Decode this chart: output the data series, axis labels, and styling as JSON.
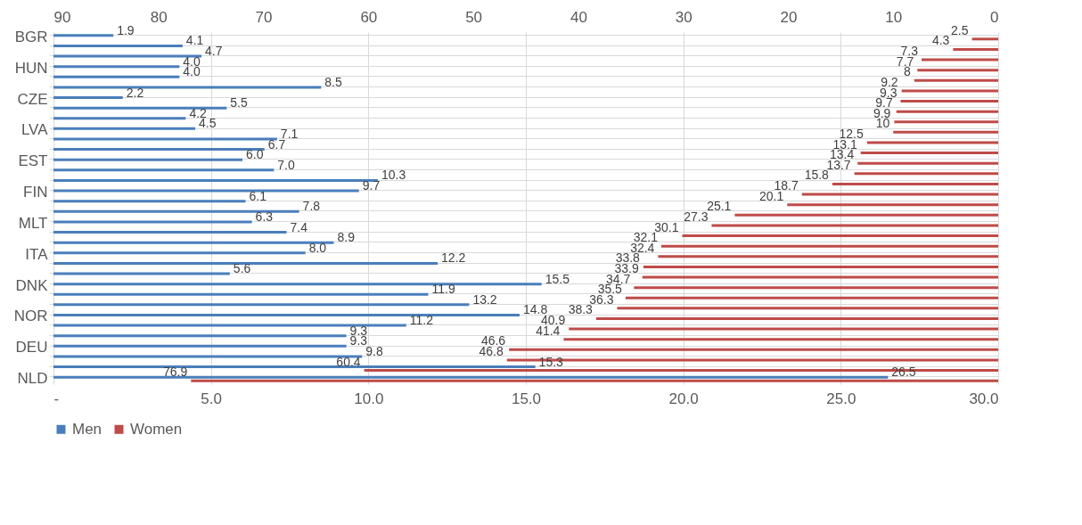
{
  "chart_data": {
    "type": "bar",
    "orientation": "horizontal",
    "categories": [
      "BGR",
      null,
      null,
      "HUN",
      null,
      null,
      "CZE",
      null,
      null,
      "LVA",
      null,
      null,
      "EST",
      null,
      null,
      "FIN",
      null,
      null,
      "MLT",
      null,
      null,
      "ITA",
      null,
      null,
      "DNK",
      null,
      null,
      "NOR",
      null,
      null,
      "DEU",
      null,
      null,
      "NLD"
    ],
    "series": [
      {
        "name": "Men",
        "color": "#4a7ebb",
        "values": [
          1.9,
          4.1,
          4.7,
          4.0,
          4.0,
          8.5,
          2.2,
          5.5,
          4.2,
          4.5,
          7.1,
          6.7,
          6.0,
          7.0,
          10.3,
          9.7,
          6.1,
          7.8,
          6.3,
          7.4,
          8.9,
          8.0,
          12.2,
          5.6,
          15.5,
          11.9,
          13.2,
          14.8,
          11.2,
          9.3,
          9.3,
          9.8,
          15.3,
          26.5
        ],
        "value_labels": [
          "1.9",
          "4.1",
          "4.7",
          "4.0",
          "4.0",
          "8.5",
          "2.2",
          "5.5",
          "4.2",
          "4.5",
          "7.1",
          "6.7",
          "6.0",
          "7.0",
          "10.3",
          "9.7",
          "6.1",
          "7.8",
          "6.3",
          "7.4",
          "8.9",
          "8.0",
          "12.2",
          "5.6",
          "15.5",
          "11.9",
          "13.2",
          "14.8",
          "11.2",
          "9.3",
          "9.3",
          "9.8",
          "15.3",
          "26.5"
        ]
      },
      {
        "name": "Women",
        "color": "#be4b48",
        "axis": "x2",
        "values": [
          2.5,
          4.3,
          7.3,
          7.7,
          8,
          9.2,
          9.3,
          9.7,
          9.9,
          10,
          12.5,
          13.1,
          13.4,
          13.7,
          15.8,
          18.7,
          20.1,
          25.1,
          27.3,
          30.1,
          32.1,
          32.4,
          33.8,
          33.9,
          34.7,
          35.5,
          36.3,
          38.3,
          40.9,
          41.4,
          46.6,
          46.8,
          60.4,
          76.9
        ],
        "value_labels": [
          "2.5",
          "4.3",
          "7.3",
          "7.7",
          "8",
          "9.2",
          "9.3",
          "9.7",
          "9.9",
          "10",
          "12.5",
          "13.1",
          "13.4",
          "13.7",
          "15.8",
          "18.7",
          "20.1",
          "25.1",
          "27.3",
          "30.1",
          "32.1",
          "32.4",
          "33.8",
          "33.9",
          "34.7",
          "35.5",
          "36.3",
          "38.3",
          "40.9",
          "41.4",
          "46.6",
          "46.8",
          "60.4",
          "76.9"
        ]
      }
    ],
    "xlim": [
      0,
      30
    ],
    "xticks": [
      {
        "value": 0,
        "label": "-"
      },
      {
        "value": 5,
        "label": "5.0"
      },
      {
        "value": 10,
        "label": "10.0"
      },
      {
        "value": 15,
        "label": "15.0"
      },
      {
        "value": 20,
        "label": "20.0"
      },
      {
        "value": 25,
        "label": "25.0"
      },
      {
        "value": 30,
        "label": "30.0"
      }
    ],
    "x2lim": [
      90,
      0
    ],
    "x2ticks": [
      90,
      80,
      70,
      60,
      50,
      40,
      30,
      20,
      10,
      0
    ],
    "grid": true,
    "legend": "bottom"
  }
}
